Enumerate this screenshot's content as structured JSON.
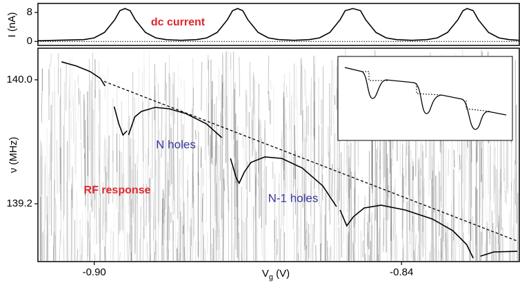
{
  "chart_data": [
    {
      "type": "line",
      "ylabel": "I (nA)",
      "annotation": "dc current",
      "xlim": [
        -0.911,
        -0.817
      ],
      "ylim": [
        -1.1,
        10.5
      ],
      "yticks": [
        0,
        8
      ],
      "reference_line": 0,
      "series": [
        {
          "color": "#000000",
          "x": [
            -0.911,
            -0.902,
            -0.9,
            -0.898,
            -0.896,
            -0.895,
            -0.894,
            -0.893,
            -0.892,
            -0.89,
            -0.888,
            -0.886,
            -0.883,
            -0.88,
            -0.878,
            -0.876,
            -0.874,
            -0.873,
            -0.872,
            -0.871,
            -0.87,
            -0.868,
            -0.866,
            -0.864,
            -0.861,
            -0.858,
            -0.856,
            -0.854,
            -0.852,
            -0.851,
            -0.8495,
            -0.848,
            -0.847,
            -0.845,
            -0.843,
            -0.841,
            -0.838,
            -0.835,
            -0.833,
            -0.831,
            -0.829,
            -0.828,
            -0.8272,
            -0.826,
            -0.825,
            -0.823,
            -0.821,
            -0.819,
            -0.817
          ],
          "values": [
            0.2,
            0.5,
            1,
            2.5,
            6,
            8.5,
            9.1,
            8.5,
            6,
            2.5,
            1,
            0.5,
            0.3,
            0.5,
            1,
            2.5,
            6,
            8.5,
            9.1,
            8.5,
            6,
            2.5,
            1,
            0.5,
            0.3,
            0.5,
            1,
            2.5,
            6,
            8.5,
            9.1,
            8.5,
            6,
            2.5,
            1,
            0.5,
            0.3,
            0.5,
            1,
            2.5,
            6,
            8.5,
            9.1,
            8.5,
            6,
            2.5,
            1,
            0.5,
            0.3
          ]
        }
      ]
    },
    {
      "type": "line",
      "ylabel": "ν (MHz)",
      "xlabel": [
        "V",
        "g",
        " (V)"
      ],
      "xlim": [
        -0.911,
        -0.817
      ],
      "ylim": [
        138.827,
        140.204
      ],
      "xticks": [
        {
          "value": -0.9,
          "label": "-0.90"
        },
        {
          "value": -0.84,
          "label": "-0.84"
        }
      ],
      "yticks": [
        {
          "value": 140.0,
          "label": "140.0"
        },
        {
          "value": 139.2,
          "label": "139.2"
        }
      ],
      "annotations": [
        "RF response",
        "N holes",
        "N-1 holes"
      ],
      "series": [
        {
          "color": "#000000",
          "dash": false,
          "x": [
            -0.9064,
            -0.9035,
            -0.9008,
            -0.8988,
            -0.8979,
            null,
            -0.8961,
            -0.8952,
            -0.8944,
            -0.8936,
            null,
            -0.8933,
            -0.8921,
            -0.8908,
            -0.8881,
            -0.8854,
            -0.8821,
            -0.8781,
            -0.8751,
            null,
            -0.8734,
            -0.8723,
            -0.8717,
            -0.8707,
            -0.8694,
            -0.8667,
            -0.8634,
            -0.8594,
            -0.8554,
            -0.8527,
            null,
            -0.852,
            -0.8507,
            -0.8494,
            -0.8473,
            -0.844,
            -0.8393,
            -0.834,
            -0.83,
            -0.8273,
            -0.826,
            null,
            -0.8246,
            -0.822,
            -0.8174
          ],
          "values": [
            140.116,
            140.089,
            140.053,
            140.009,
            139.96,
            null,
            139.827,
            139.716,
            139.644,
            139.671,
            null,
            139.644,
            139.76,
            139.796,
            139.822,
            139.813,
            139.782,
            139.716,
            139.627,
            null,
            139.493,
            139.369,
            139.333,
            139.404,
            139.467,
            139.502,
            139.493,
            139.431,
            139.316,
            139.182,
            null,
            139.16,
            139.058,
            139.116,
            139.173,
            139.191,
            139.16,
            139.102,
            139.027,
            138.938,
            138.849,
            null,
            138.862,
            138.889,
            138.893
          ]
        },
        {
          "color": "#000000",
          "dash": true,
          "x": [
            -0.8981,
            -0.8174
          ],
          "values": [
            139.99,
            138.96
          ]
        }
      ]
    }
  ]
}
